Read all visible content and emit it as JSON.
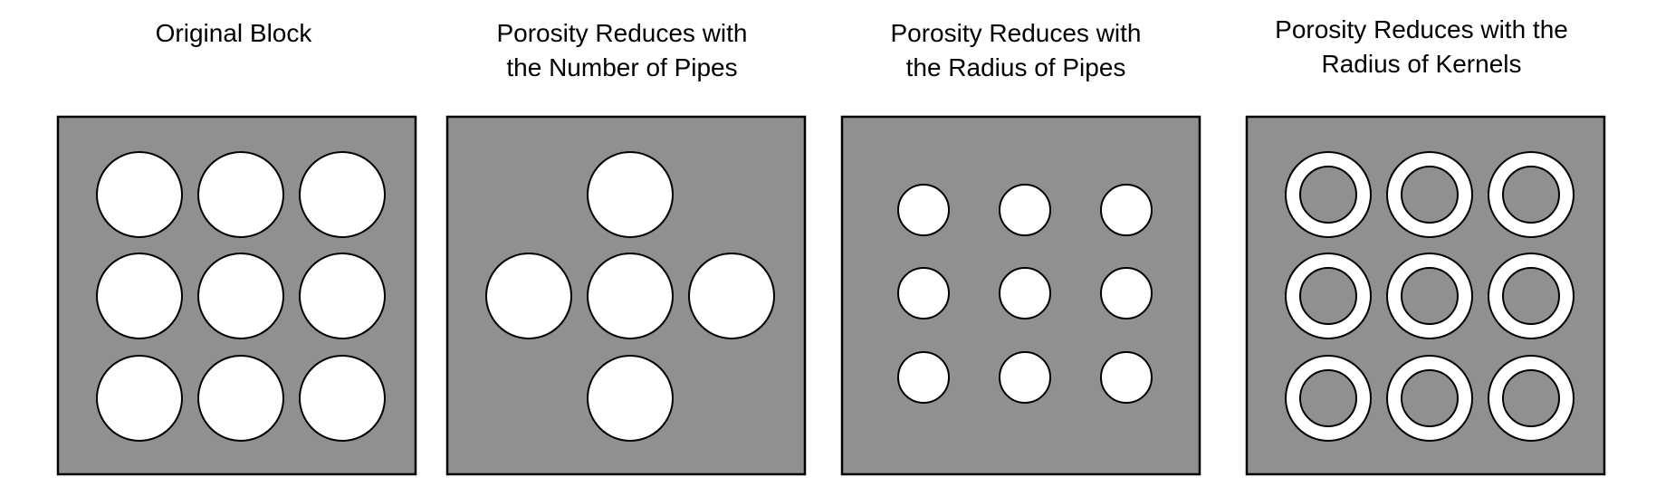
{
  "colors": {
    "block_fill": "#909090",
    "pipe_fill": "#ffffff",
    "outline": "#000000",
    "background": "#ffffff"
  },
  "panels": [
    {
      "id": "original-block",
      "title": "Original Block",
      "layout": "full-grid",
      "pipe_size": "large",
      "kernel": false,
      "pipe_count": 9
    },
    {
      "id": "fewer-pipes",
      "title": "Porosity Reduces with\nthe Number of Pipes",
      "layout": "cross",
      "pipe_size": "large",
      "kernel": false,
      "pipe_count": 5
    },
    {
      "id": "smaller-pipes",
      "title": "Porosity Reduces with\nthe Radius of Pipes",
      "layout": "full-grid",
      "pipe_size": "small",
      "kernel": false,
      "pipe_count": 9
    },
    {
      "id": "kernels",
      "title": "Porosity Reduces with the\nRadius of Kernels",
      "layout": "full-grid",
      "pipe_size": "large",
      "kernel": true,
      "pipe_count": 9
    }
  ]
}
